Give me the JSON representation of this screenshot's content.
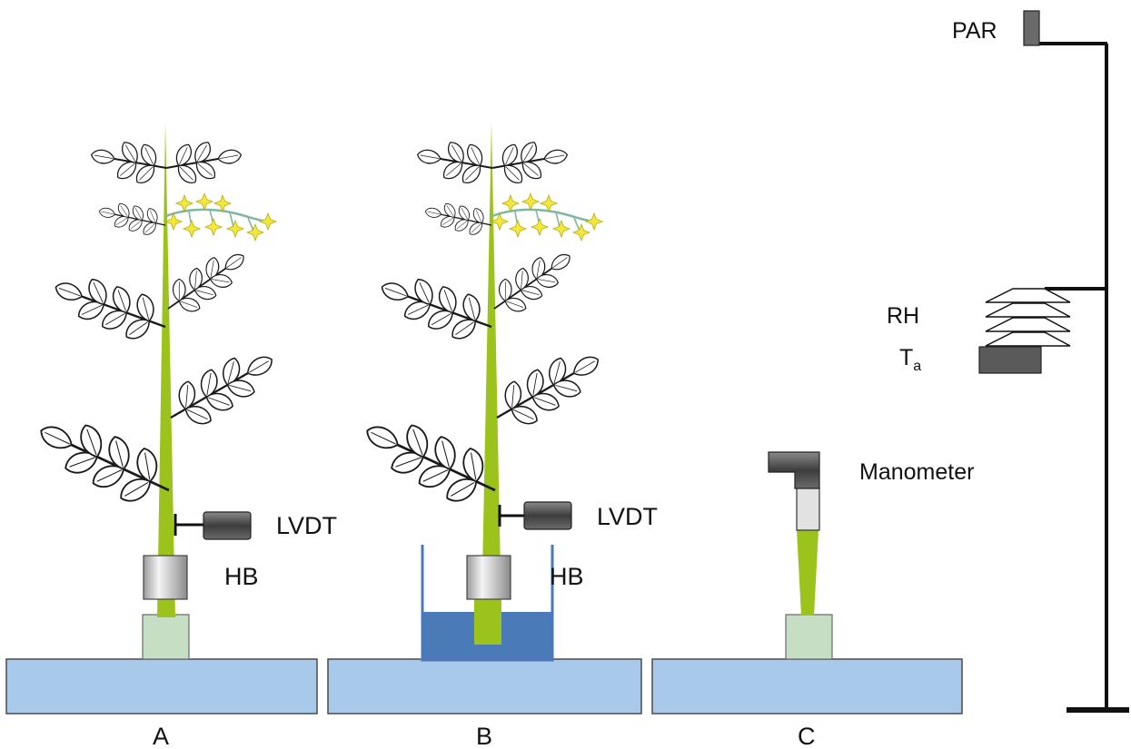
{
  "panels": {
    "a": {
      "label": "A"
    },
    "b": {
      "label": "B"
    },
    "c": {
      "label": "C"
    }
  },
  "sensors": {
    "lvdt_a": "LVDT",
    "lvdt_b": "LVDT",
    "hb_a": "HB",
    "hb_b": "HB",
    "manometer": "Manometer",
    "par": "PAR",
    "rh": "RH",
    "ta_main": "T",
    "ta_sub": "a"
  },
  "colors": {
    "stem": "#9bc31c",
    "bench": "#a9c9ea",
    "bench_edge": "#4a4a4a",
    "pot": "#c6dfc4",
    "water": "#4a7ab8",
    "water_tank_wall": "#4a78bb",
    "flower": "#f1e83a",
    "sensor_dark": "#555555",
    "heat_band": "#d9d9d9"
  }
}
